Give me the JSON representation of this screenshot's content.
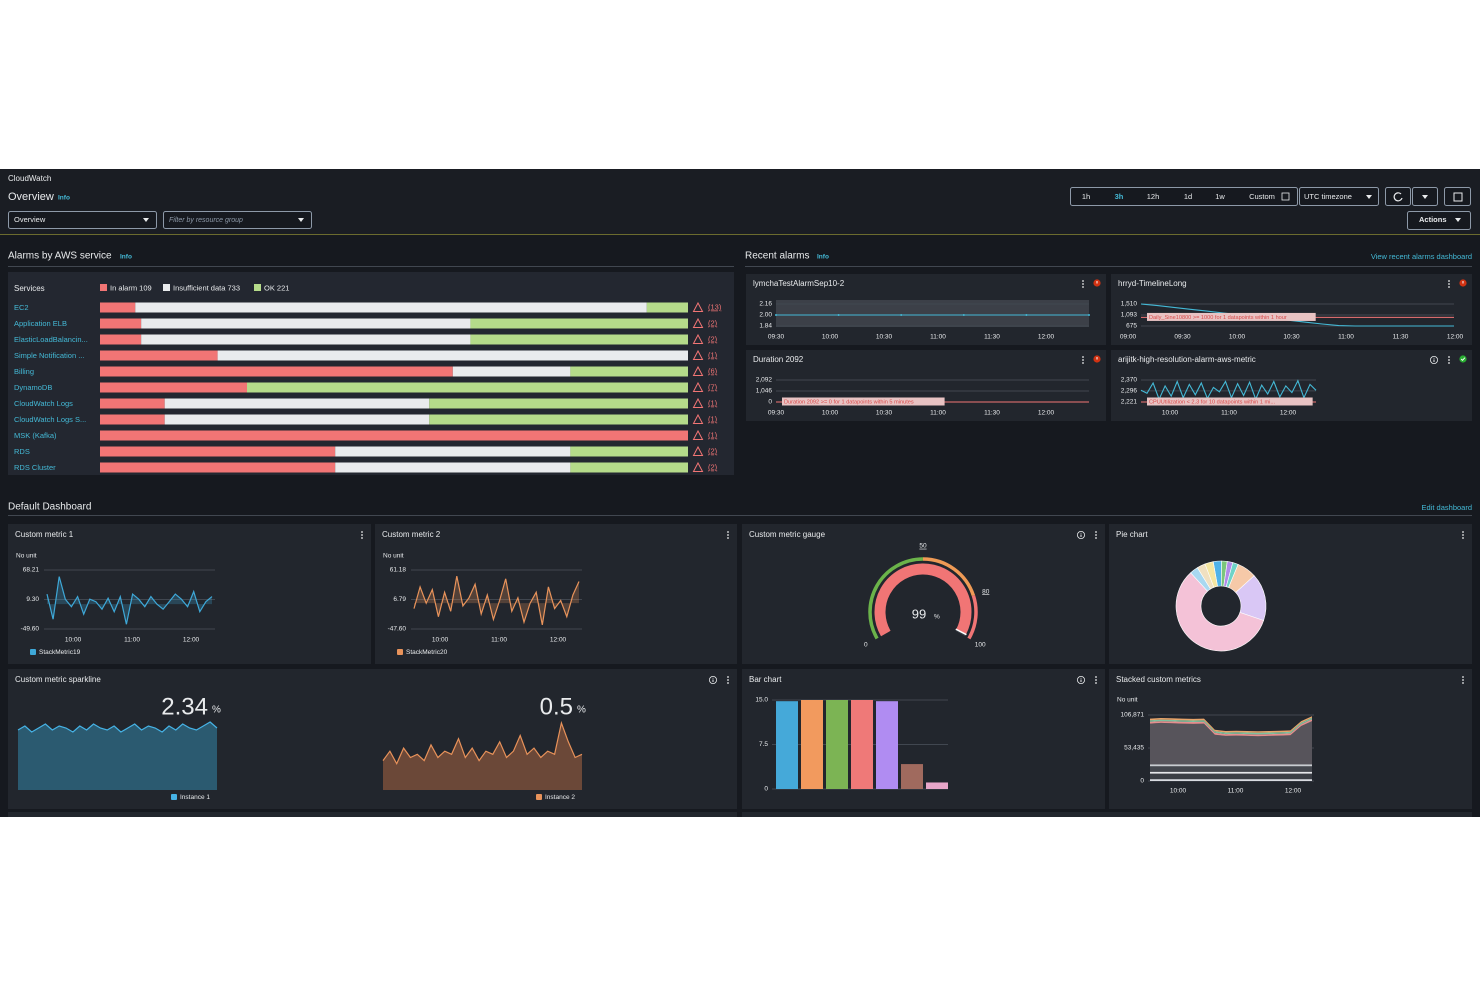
{
  "header": {
    "breadcrumb": "CloudWatch",
    "title": "Overview",
    "info": "Info",
    "view_select": "Overview",
    "filter_placeholder": "Filter by resource group",
    "time_ranges": [
      "1h",
      "3h",
      "12h",
      "1d",
      "1w",
      "Custom"
    ],
    "active_range": 1,
    "timezone": "UTC timezone",
    "actions": "Actions"
  },
  "alarms_by_service": {
    "title": "Alarms by AWS service",
    "info": "Info",
    "column_header": "Services",
    "legend": [
      {
        "label": "In alarm 109",
        "color": "#f17575"
      },
      {
        "label": "Insufficient data 733",
        "color": "#e9ebed"
      },
      {
        "label": "OK 221",
        "color": "#b5db8a"
      }
    ],
    "rows": [
      {
        "service": "EC2",
        "segments": [
          6,
          87,
          7
        ],
        "alarms": "(13)"
      },
      {
        "service": "Application ELB",
        "segments": [
          7,
          56,
          37
        ],
        "alarms": "(2)"
      },
      {
        "service": "ElasticLoadBalancin...",
        "segments": [
          7,
          56,
          37
        ],
        "alarms": "(2)"
      },
      {
        "service": "Simple Notification ...",
        "segments": [
          20,
          80,
          0
        ],
        "alarms": "(1)"
      },
      {
        "service": "Billing",
        "segments": [
          60,
          20,
          20
        ],
        "alarms": "(6)"
      },
      {
        "service": "DynamoDB",
        "segments": [
          25,
          0,
          75
        ],
        "alarms": "(7)"
      },
      {
        "service": "CloudWatch Logs",
        "segments": [
          11,
          45,
          44
        ],
        "alarms": "(1)"
      },
      {
        "service": "CloudWatch Logs S...",
        "segments": [
          11,
          45,
          44
        ],
        "alarms": "(1)"
      },
      {
        "service": "MSK (Kafka)",
        "segments": [
          100,
          0,
          0
        ],
        "alarms": "(1)"
      },
      {
        "service": "RDS",
        "segments": [
          40,
          40,
          20
        ],
        "alarms": "(2)"
      },
      {
        "service": "RDS Cluster",
        "segments": [
          40,
          40,
          20
        ],
        "alarms": "(2)"
      }
    ]
  },
  "recent_alarms": {
    "title": "Recent alarms",
    "info": "Info",
    "link": "View recent alarms dashboard",
    "widgets": [
      {
        "title": "lymchaTestAlarmSep10-2",
        "state": "alarm",
        "yticks": [
          2.16,
          {
            "value": 2,
            "label": "2.00"
          },
          1.84
        ],
        "xticks": [
          "09:30",
          "10:00",
          "10:30",
          "11:00",
          "11:30",
          "12:00"
        ],
        "values": [
          2,
          2,
          2,
          2,
          2,
          2,
          2,
          2,
          2,
          2,
          2,
          2,
          2,
          2,
          2,
          2
        ]
      },
      {
        "title": "hrryd-TimelineLong",
        "state": "alarm",
        "yticks": [
          {
            "value": 1510,
            "label": "1,510"
          },
          {
            "value": 1093,
            "label": "1,093"
          },
          675
        ],
        "xticks": [
          "09:00",
          "09:30",
          "10:00",
          "10:30",
          "11:00",
          "11:30",
          "12:00"
        ],
        "values": [
          1510,
          1450,
          1380,
          1310,
          1240,
          1170,
          1100,
          1030,
          960,
          890,
          820,
          750,
          690,
          675,
          675,
          675,
          675,
          675,
          675,
          675
        ],
        "threshold": 1000,
        "annotation": "Daily_Sine10800 >= 1000 for 1 datapoints within 1 hour"
      },
      {
        "title": "Duration 2092",
        "state": "alarm",
        "yticks": [
          {
            "value": 2092,
            "label": "2,092"
          },
          {
            "value": 1046,
            "label": "1,046"
          },
          0
        ],
        "xticks": [
          "09:30",
          "10:00",
          "10:30",
          "11:00",
          "11:30",
          "12:00"
        ],
        "values": [
          null,
          null,
          2092,
          null,
          null,
          null,
          null,
          null,
          null,
          null,
          null,
          null,
          null,
          null,
          null,
          null,
          null,
          null,
          null,
          null
        ],
        "threshold": 0,
        "annotation": "Duration 2092 >= 0 for 1 datapoints within 5 minutes"
      },
      {
        "title": "arijitk-high-resolution-alarm-aws-metric",
        "state": "ok",
        "yticks": [
          {
            "value": 2370,
            "label": "2,370"
          },
          {
            "value": 2296,
            "label": "2,296"
          },
          {
            "value": 2221,
            "label": "2,221"
          }
        ],
        "xticks": [
          "10:00",
          "11:00",
          "12:00"
        ],
        "values": [
          2300,
          2280,
          2350,
          2240,
          2330,
          2260,
          2360,
          2250,
          2340,
          2270,
          2350,
          2245,
          2320,
          2290,
          2360,
          2250,
          2345,
          2265,
          2355,
          2240,
          2335,
          2275,
          2360,
          2255,
          2330,
          2285,
          2365,
          2250,
          2340,
          2300
        ],
        "annotation": "CPUUtilization < 2.3 for 10 datapoints within 1 mi..."
      }
    ]
  },
  "dashboard": {
    "title": "Default Dashboard",
    "edit": "Edit dashboard",
    "widgets": [
      {
        "type": "line",
        "title": "Custom metric 1",
        "unit": "No unit",
        "ylim": [
          -49.6,
          68.21
        ],
        "yticks": [
          68.21,
          {
            "value": 9.3,
            "label": "9.30"
          },
          {
            "value": -49.6,
            "label": "-49.60"
          }
        ],
        "xticks": [
          "10:00",
          "11:00",
          "12:00"
        ],
        "series": [
          {
            "name": "StackMetric19",
            "color": "#3ea8d8",
            "values": [
              20,
              -30,
              55,
              10,
              -5,
              15,
              -20,
              10,
              5,
              -10,
              12,
              -15,
              15,
              -40,
              20,
              10,
              -5,
              15,
              0,
              -10,
              5,
              20,
              10,
              -5,
              25,
              -15,
              5,
              15
            ]
          }
        ]
      },
      {
        "type": "line",
        "title": "Custom metric 2",
        "unit": "No unit",
        "ylim": [
          -47.6,
          61.18
        ],
        "yticks": [
          61.18,
          6.79,
          {
            "value": -47.6,
            "label": "-47.60"
          }
        ],
        "xticks": [
          "10:00",
          "11:00",
          "12:00"
        ],
        "series": [
          {
            "name": "StackMetric20",
            "color": "#e8935b",
            "values": [
              -10,
              30,
              0,
              25,
              -25,
              20,
              -15,
              50,
              -5,
              10,
              35,
              -20,
              15,
              -30,
              5,
              45,
              -15,
              10,
              -35,
              0,
              20,
              -40,
              30,
              -10,
              5,
              -25,
              15,
              40
            ]
          }
        ]
      },
      {
        "type": "gauge",
        "title": "Custom metric gauge",
        "value": 99,
        "unit": "%",
        "min": 0,
        "max": 100,
        "thresholds": [
          50,
          80
        ],
        "band_colors": [
          "#6bb34a",
          "#ef9a55",
          "#f17575"
        ],
        "value_color": "#f17575"
      },
      {
        "type": "pie",
        "title": "Pie chart",
        "values": [
          3,
          2,
          2,
          2,
          7,
          17,
          58,
          3,
          3,
          3
        ],
        "colors": [
          "#4fb3e8",
          "#7bc67b",
          "#b08be8",
          "#6fd3c7",
          "#f6c9a8",
          "#d9c7f5",
          "#f4c2d7",
          "#a8d8f0",
          "#f0e0c0",
          "#f5e6a0"
        ]
      },
      {
        "type": "sparkline",
        "title": "Custom metric sparkline",
        "series": [
          {
            "name": "Instance 1",
            "color": "#46b3e6",
            "fill": "#2b5a70",
            "latest": 2.34,
            "unit": "%",
            "values": [
              2.33,
              2.35,
              2.32,
              2.34,
              2.36,
              2.33,
              2.35,
              2.34,
              2.32,
              2.35,
              2.33,
              2.36,
              2.34,
              2.33,
              2.35,
              2.32,
              2.34,
              2.36,
              2.33,
              2.35,
              2.34,
              2.32,
              2.35,
              2.33,
              2.36,
              2.34,
              2.33,
              2.35,
              2.37,
              2.34
            ]
          },
          {
            "name": "Instance 2",
            "color": "#e8925a",
            "fill": "#6b4838",
            "latest": 0.5,
            "unit": "%",
            "values": [
              0.3,
              0.6,
              0.2,
              0.7,
              0.4,
              0.5,
              0.3,
              0.8,
              0.4,
              0.6,
              0.5,
              1.0,
              0.4,
              0.7,
              0.3,
              0.6,
              0.5,
              0.9,
              0.4,
              0.6,
              1.1,
              0.5,
              0.7,
              0.4,
              0.6,
              0.5,
              1.5,
              0.9,
              0.4,
              0.5
            ]
          }
        ]
      },
      {
        "type": "bar",
        "title": "Bar chart",
        "ylim": [
          0,
          15
        ],
        "yticks": [
          {
            "value": 15,
            "label": "15.0"
          },
          7.5,
          0
        ],
        "values": [
          14.8,
          15,
          15,
          15,
          14.8,
          4.2,
          1.1
        ],
        "colors": [
          "#45a9d9",
          "#f29a5e",
          "#7cb454",
          "#ef7978",
          "#b08cf2",
          "#a06a5e",
          "#e8a6c9"
        ]
      },
      {
        "type": "stacked",
        "title": "Stacked custom metrics",
        "unit": "No unit",
        "ylim": [
          0,
          106871
        ],
        "yticks": [
          {
            "value": 106871,
            "label": "106,871"
          },
          {
            "value": 53435,
            "label": "53,435"
          },
          0
        ],
        "xticks": [
          "10:00",
          "11:00",
          "12:00"
        ],
        "series": [
          {
            "color": "#d9dbe0",
            "values": [
              3000,
              3000,
              3000,
              3000,
              3000,
              3000,
              3000,
              3000,
              3000,
              3000,
              3000,
              3000,
              3000,
              3000,
              3000,
              3000
            ]
          },
          {
            "color": "#3b3e45",
            "values": [
              9000,
              9000,
              9000,
              9000,
              9000,
              9000,
              9000,
              9000,
              9000,
              9000,
              9000,
              9000,
              9000,
              9000,
              9000,
              9000
            ]
          },
          {
            "color": "#e6e7ea",
            "values": [
              3000,
              3000,
              3000,
              3000,
              3000,
              3000,
              3000,
              3000,
              3000,
              3000,
              3000,
              3000,
              3000,
              3000,
              3000,
              3000
            ]
          },
          {
            "color": "#44474e",
            "values": [
              9000,
              9000,
              9000,
              9000,
              9000,
              9000,
              9000,
              9000,
              9000,
              9000,
              9000,
              9000,
              9000,
              9000,
              9000,
              9000
            ]
          },
          {
            "color": "#c9ccd1",
            "values": [
              3000,
              3000,
              3000,
              3000,
              3000,
              3000,
              3000,
              3000,
              3000,
              3000,
              3000,
              3000,
              3000,
              3000,
              3000,
              3000
            ]
          },
          {
            "color": "#57545b",
            "values": [
              66000,
              67000,
              66500,
              66000,
              65500,
              66000,
              48000,
              46000,
              46500,
              46000,
              45500,
              46000,
              46500,
              47000,
              62000,
              70000
            ]
          },
          {
            "color": "#e58e8e",
            "values": [
              3000,
              3000,
              3000,
              3000,
              3000,
              3000,
              3000,
              3000,
              3000,
              3000,
              3000,
              3000,
              3000,
              3000,
              3000,
              3000
            ]
          },
          {
            "color": "#7cc2a0",
            "values": [
              2500,
              2500,
              2500,
              2500,
              2500,
              2500,
              2500,
              2500,
              2500,
              2500,
              2500,
              2500,
              2500,
              2500,
              2500,
              2500
            ]
          },
          {
            "color": "#e8a46a",
            "values": [
              2500,
              2500,
              2500,
              2500,
              2500,
              2500,
              2500,
              2500,
              2500,
              2500,
              2500,
              2500,
              2500,
              2500,
              2500,
              2500
            ]
          }
        ]
      }
    ]
  }
}
